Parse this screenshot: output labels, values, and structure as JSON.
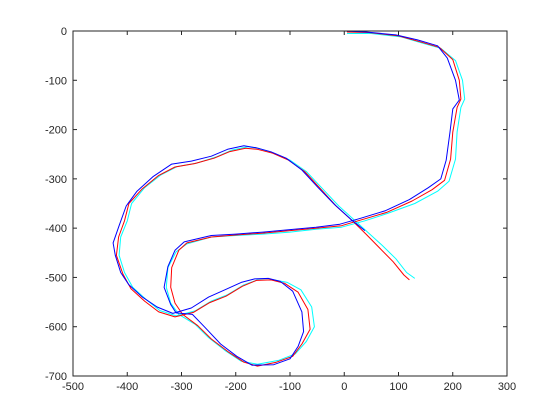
{
  "chart_data": {
    "type": "line",
    "title": "",
    "xlabel": "",
    "ylabel": "",
    "xlim": [
      -500,
      300
    ],
    "ylim": [
      -700,
      0
    ],
    "xticks": [
      -500,
      -400,
      -300,
      -200,
      -100,
      0,
      100,
      200,
      300
    ],
    "yticks": [
      0,
      -100,
      -200,
      -300,
      -400,
      -500,
      -600,
      -700
    ],
    "xtick_labels": [
      "-500",
      "-400",
      "-300",
      "-200",
      "-100",
      "0",
      "100",
      "200",
      "300"
    ],
    "ytick_labels": [
      "0",
      "-100",
      "-200",
      "-300",
      "-400",
      "-500",
      "-600",
      "-700"
    ],
    "grid": false,
    "legend": "none",
    "colors": {
      "axis": "#262626",
      "background": "#ffffff"
    },
    "series": [
      {
        "color": "#00ffff",
        "points": [
          [
            5,
            -5
          ],
          [
            50,
            -5
          ],
          [
            105,
            -12
          ],
          [
            145,
            -25
          ],
          [
            178,
            -35
          ],
          [
            205,
            -60
          ],
          [
            218,
            -100
          ],
          [
            222,
            -138
          ],
          [
            215,
            -155
          ],
          [
            208,
            -205
          ],
          [
            205,
            -260
          ],
          [
            193,
            -305
          ],
          [
            172,
            -325
          ],
          [
            130,
            -350
          ],
          [
            80,
            -370
          ],
          [
            38,
            -385
          ],
          [
            -5,
            -398
          ],
          [
            -50,
            -402
          ],
          [
            -100,
            -408
          ],
          [
            -150,
            -412
          ],
          [
            -200,
            -415
          ],
          [
            -245,
            -418
          ],
          [
            -290,
            -432
          ],
          [
            -310,
            -448
          ],
          [
            -325,
            -480
          ],
          [
            -328,
            -520
          ],
          [
            -320,
            -552
          ],
          [
            -305,
            -575
          ],
          [
            -275,
            -595
          ],
          [
            -250,
            -622
          ],
          [
            -220,
            -648
          ],
          [
            -190,
            -670
          ],
          [
            -160,
            -676
          ],
          [
            -120,
            -668
          ],
          [
            -90,
            -655
          ],
          [
            -70,
            -630
          ],
          [
            -55,
            -600
          ],
          [
            -60,
            -560
          ],
          [
            -80,
            -525
          ],
          [
            -105,
            -510
          ],
          [
            -130,
            -505
          ],
          [
            -160,
            -505
          ],
          [
            -185,
            -515
          ],
          [
            -215,
            -535
          ],
          [
            -245,
            -548
          ],
          [
            -275,
            -568
          ],
          [
            -310,
            -578
          ],
          [
            -340,
            -567
          ],
          [
            -365,
            -545
          ],
          [
            -390,
            -520
          ],
          [
            -405,
            -490
          ],
          [
            -415,
            -455
          ],
          [
            -412,
            -418
          ],
          [
            -400,
            -385
          ],
          [
            -392,
            -350
          ],
          [
            -368,
            -318
          ],
          [
            -338,
            -292
          ],
          [
            -308,
            -275
          ],
          [
            -272,
            -268
          ],
          [
            -235,
            -255
          ],
          [
            -208,
            -242
          ],
          [
            -178,
            -235
          ],
          [
            -158,
            -238
          ],
          [
            -130,
            -248
          ],
          [
            -100,
            -262
          ],
          [
            -70,
            -285
          ],
          [
            -40,
            -320
          ],
          [
            -10,
            -355
          ],
          [
            20,
            -385
          ],
          [
            45,
            -410
          ],
          [
            70,
            -435
          ],
          [
            95,
            -462
          ],
          [
            115,
            -490
          ],
          [
            130,
            -502
          ]
        ]
      },
      {
        "color": "#ff0000",
        "points": [
          [
            5,
            -2
          ],
          [
            45,
            -3
          ],
          [
            100,
            -10
          ],
          [
            140,
            -22
          ],
          [
            175,
            -33
          ],
          [
            200,
            -58
          ],
          [
            212,
            -100
          ],
          [
            215,
            -138
          ],
          [
            208,
            -155
          ],
          [
            200,
            -205
          ],
          [
            196,
            -260
          ],
          [
            185,
            -303
          ],
          [
            162,
            -322
          ],
          [
            125,
            -345
          ],
          [
            78,
            -368
          ],
          [
            35,
            -382
          ],
          [
            -5,
            -395
          ],
          [
            -50,
            -400
          ],
          [
            -100,
            -405
          ],
          [
            -150,
            -410
          ],
          [
            -200,
            -414
          ],
          [
            -245,
            -418
          ],
          [
            -290,
            -430
          ],
          [
            -305,
            -445
          ],
          [
            -318,
            -480
          ],
          [
            -320,
            -520
          ],
          [
            -312,
            -552
          ],
          [
            -298,
            -575
          ],
          [
            -270,
            -598
          ],
          [
            -245,
            -625
          ],
          [
            -215,
            -650
          ],
          [
            -185,
            -672
          ],
          [
            -160,
            -680
          ],
          [
            -125,
            -672
          ],
          [
            -95,
            -660
          ],
          [
            -78,
            -635
          ],
          [
            -63,
            -605
          ],
          [
            -67,
            -565
          ],
          [
            -85,
            -530
          ],
          [
            -110,
            -512
          ],
          [
            -135,
            -505
          ],
          [
            -162,
            -506
          ],
          [
            -188,
            -518
          ],
          [
            -218,
            -538
          ],
          [
            -248,
            -551
          ],
          [
            -278,
            -571
          ],
          [
            -312,
            -580
          ],
          [
            -342,
            -570
          ],
          [
            -368,
            -548
          ],
          [
            -393,
            -523
          ],
          [
            -408,
            -493
          ],
          [
            -420,
            -455
          ],
          [
            -416,
            -418
          ],
          [
            -405,
            -385
          ],
          [
            -397,
            -350
          ],
          [
            -372,
            -320
          ],
          [
            -342,
            -293
          ],
          [
            -312,
            -276
          ],
          [
            -276,
            -269
          ],
          [
            -240,
            -258
          ],
          [
            -212,
            -245
          ],
          [
            -182,
            -238
          ],
          [
            -160,
            -240
          ],
          [
            -132,
            -248
          ],
          [
            -103,
            -262
          ],
          [
            -73,
            -285
          ],
          [
            -44,
            -320
          ],
          [
            -15,
            -355
          ],
          [
            15,
            -385
          ],
          [
            40,
            -412
          ],
          [
            65,
            -440
          ],
          [
            90,
            -468
          ],
          [
            110,
            -495
          ],
          [
            120,
            -505
          ]
        ]
      },
      {
        "color": "#0000ff",
        "points": [
          [
            0,
            0
          ],
          [
            40,
            -2
          ],
          [
            95,
            -8
          ],
          [
            135,
            -18
          ],
          [
            172,
            -30
          ],
          [
            190,
            -55
          ],
          [
            205,
            -100
          ],
          [
            212,
            -140
          ],
          [
            200,
            -158
          ],
          [
            195,
            -205
          ],
          [
            188,
            -262
          ],
          [
            178,
            -300
          ],
          [
            155,
            -318
          ],
          [
            120,
            -342
          ],
          [
            75,
            -365
          ],
          [
            30,
            -380
          ],
          [
            -8,
            -392
          ],
          [
            -52,
            -398
          ],
          [
            -100,
            -403
          ],
          [
            -150,
            -408
          ],
          [
            -200,
            -412
          ],
          [
            -245,
            -415
          ],
          [
            -295,
            -428
          ],
          [
            -312,
            -445
          ],
          [
            -325,
            -478
          ],
          [
            -332,
            -520
          ],
          [
            -320,
            -555
          ],
          [
            -310,
            -572
          ],
          [
            -280,
            -575
          ],
          [
            -258,
            -600
          ],
          [
            -228,
            -635
          ],
          [
            -198,
            -660
          ],
          [
            -170,
            -678
          ],
          [
            -130,
            -677
          ],
          [
            -100,
            -665
          ],
          [
            -85,
            -640
          ],
          [
            -75,
            -610
          ],
          [
            -78,
            -570
          ],
          [
            -95,
            -528
          ],
          [
            -118,
            -508
          ],
          [
            -140,
            -502
          ],
          [
            -165,
            -503
          ],
          [
            -190,
            -510
          ],
          [
            -220,
            -525
          ],
          [
            -250,
            -540
          ],
          [
            -282,
            -562
          ],
          [
            -316,
            -573
          ],
          [
            -345,
            -560
          ],
          [
            -372,
            -540
          ],
          [
            -397,
            -515
          ],
          [
            -412,
            -490
          ],
          [
            -422,
            -455
          ],
          [
            -426,
            -430
          ],
          [
            -415,
            -395
          ],
          [
            -402,
            -355
          ],
          [
            -382,
            -325
          ],
          [
            -352,
            -295
          ],
          [
            -318,
            -270
          ],
          [
            -282,
            -264
          ],
          [
            -245,
            -254
          ],
          [
            -215,
            -240
          ],
          [
            -185,
            -233
          ],
          [
            -162,
            -237
          ],
          [
            -135,
            -245
          ],
          [
            -107,
            -258
          ],
          [
            -78,
            -282
          ],
          [
            -48,
            -318
          ],
          [
            -18,
            -352
          ],
          [
            12,
            -382
          ],
          [
            38,
            -405
          ]
        ]
      }
    ]
  }
}
